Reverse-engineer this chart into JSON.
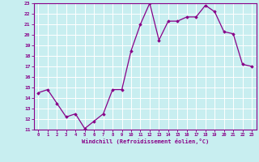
{
  "x": [
    0,
    1,
    2,
    3,
    4,
    5,
    6,
    7,
    8,
    9,
    10,
    11,
    12,
    13,
    14,
    15,
    16,
    17,
    18,
    19,
    20,
    21,
    22,
    23
  ],
  "y": [
    14.5,
    14.8,
    13.5,
    12.2,
    12.5,
    11.1,
    11.8,
    12.5,
    14.8,
    14.8,
    18.5,
    21.0,
    23.0,
    19.5,
    21.3,
    21.3,
    21.7,
    21.7,
    22.8,
    22.2,
    20.3,
    20.1,
    17.2,
    17.0
  ],
  "xlabel": "Windchill (Refroidissement éolien,°C)",
  "ylim": [
    11,
    23
  ],
  "xlim": [
    -0.5,
    23.5
  ],
  "yticks": [
    11,
    12,
    13,
    14,
    15,
    16,
    17,
    18,
    19,
    20,
    21,
    22,
    23
  ],
  "xticks": [
    0,
    1,
    2,
    3,
    4,
    5,
    6,
    7,
    8,
    9,
    10,
    11,
    12,
    13,
    14,
    15,
    16,
    17,
    18,
    19,
    20,
    21,
    22,
    23
  ],
  "line_color": "#880088",
  "marker_color": "#880088",
  "bg_color": "#c8eef0",
  "grid_color": "#ffffff",
  "axis_color": "#880088",
  "tick_label_color": "#880088",
  "xlabel_color": "#880088"
}
